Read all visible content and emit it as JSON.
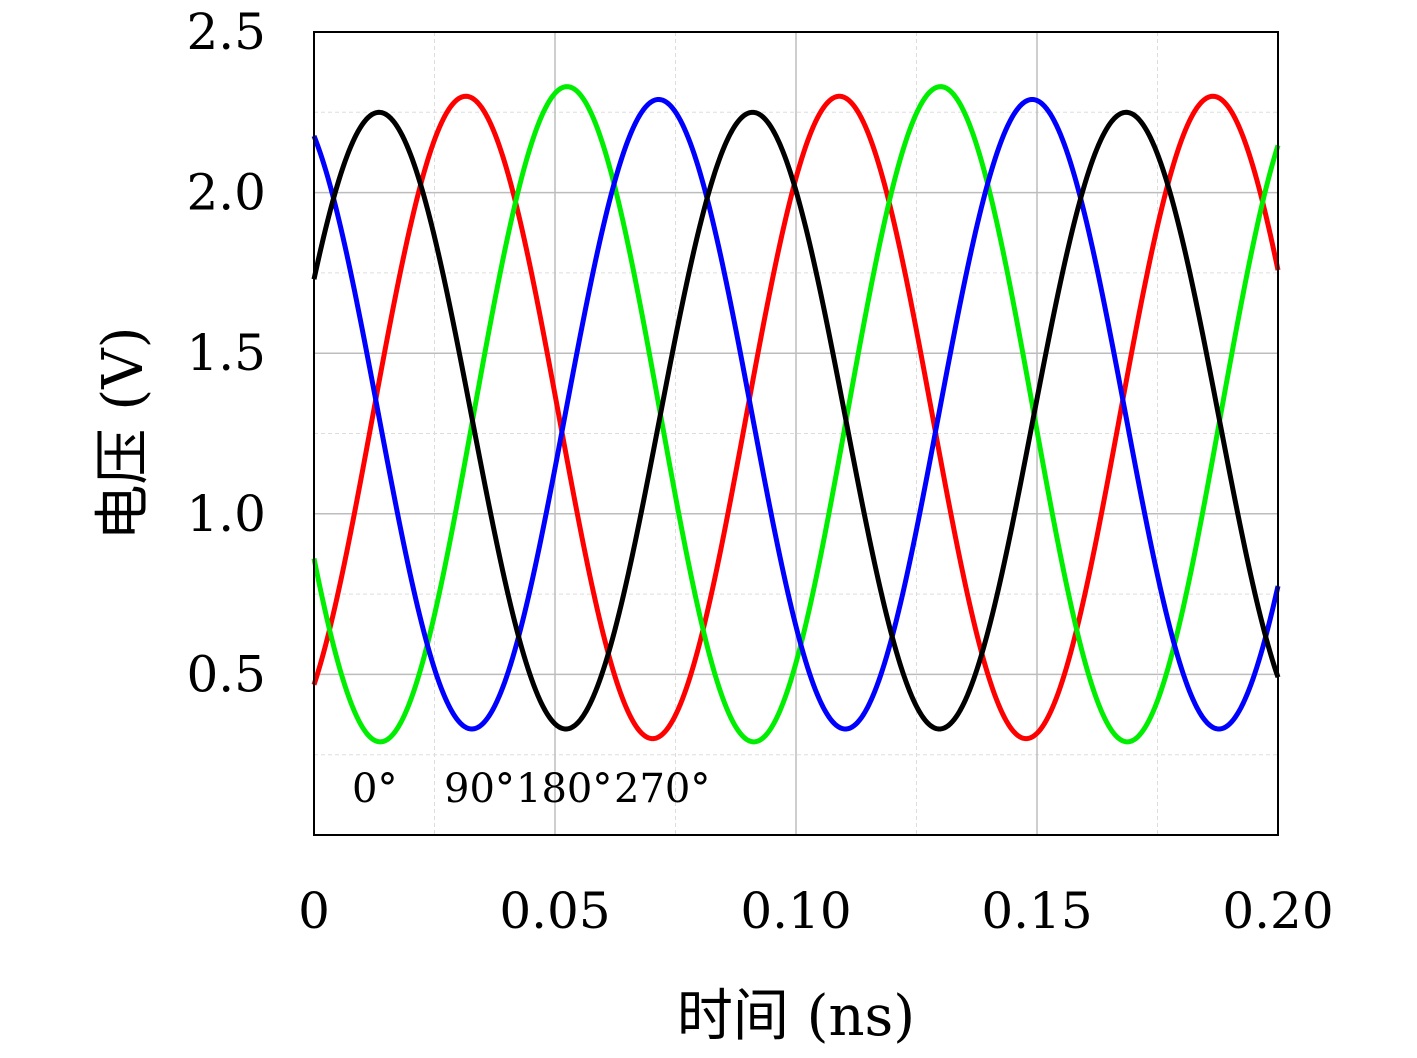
{
  "chart_data": {
    "type": "line",
    "xlabel": "时间 (ns)",
    "ylabel": "电压 (V)",
    "xlim": [
      0,
      0.2
    ],
    "ylim": [
      0,
      2.5
    ],
    "x_ticks": [
      "0",
      "0.05",
      "0.10",
      "0.15",
      "0.20"
    ],
    "y_ticks": [
      "0.5",
      "1.0",
      "1.5",
      "2.0",
      "2.5"
    ],
    "grid": true,
    "period_ns": 0.0775,
    "series": [
      {
        "color": "#ff0000",
        "offset": 1.3,
        "amplitude": 1.0,
        "phase_deg": 0,
        "label": "0°",
        "peaks": [
          [
            0.0315,
            2.3
          ],
          [
            0.109,
            2.3
          ],
          [
            0.1865,
            2.31
          ]
        ],
        "troughs": [
          [
            0.07,
            0.29
          ],
          [
            0.1475,
            0.3
          ]
        ]
      },
      {
        "color": "#00ee00",
        "offset": 1.31,
        "amplitude": 1.02,
        "phase_deg": 90,
        "label": "90°",
        "peaks": [
          [
            0.0525,
            2.33
          ],
          [
            0.13,
            2.33
          ]
        ],
        "troughs": [
          [
            0.0135,
            0.29
          ],
          [
            0.091,
            0.29
          ],
          [
            0.1685,
            0.29
          ]
        ]
      },
      {
        "color": "#0000ff",
        "offset": 1.31,
        "amplitude": 0.98,
        "phase_deg": 180,
        "label": "180°",
        "peaks": [
          [
            0.0715,
            2.29
          ],
          [
            0.149,
            2.28
          ]
        ],
        "troughs": [
          [
            0.0325,
            0.33
          ],
          [
            0.11,
            0.33
          ],
          [
            0.1875,
            0.32
          ]
        ]
      },
      {
        "color": "#000000",
        "offset": 1.29,
        "amplitude": 0.96,
        "phase_deg": 270,
        "label": "270°",
        "peaks": [
          [
            0.0135,
            2.26
          ],
          [
            0.091,
            2.25
          ],
          [
            0.1685,
            2.26
          ]
        ],
        "troughs": [
          [
            0.0525,
            0.33
          ],
          [
            0.13,
            0.34
          ]
        ]
      }
    ],
    "annotations": [
      "0°",
      "90°",
      "180°",
      "270°"
    ]
  }
}
